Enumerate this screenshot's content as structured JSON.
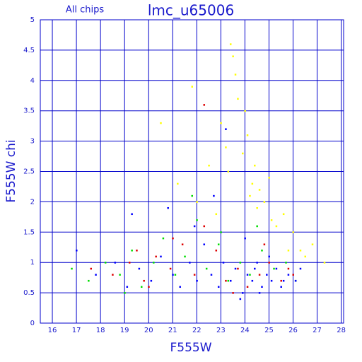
{
  "chart_data": {
    "type": "scatter",
    "title": "lmc_u65006",
    "subtitle": "All chips",
    "x_label": "F555W",
    "y_label": "F555W chi",
    "xlim": [
      15.5,
      28.1
    ],
    "ylim": [
      0,
      5
    ],
    "xticks": [
      16,
      17,
      18,
      19,
      20,
      21,
      22,
      23,
      24,
      25,
      26,
      27,
      28
    ],
    "yticks": [
      0,
      0.5,
      1,
      1.5,
      2,
      2.5,
      3,
      3.5,
      4,
      4.5,
      5
    ],
    "grid": true,
    "grid_color": "#0000cc",
    "text_color": "#1a1acc",
    "series": [
      {
        "color": "#ffff00",
        "x": [
          21.2,
          22.0,
          22.5,
          23.0,
          23.3,
          23.5,
          23.7,
          23.9,
          24.1,
          24.3,
          24.5,
          24.8,
          25.0,
          25.3,
          25.6,
          26.0,
          26.3,
          26.8,
          27.3,
          22.8,
          23.6,
          24.0,
          24.6,
          25.1,
          20.5,
          21.8,
          23.2,
          24.4,
          25.8,
          26.5,
          23.4,
          24.2
        ],
        "values": [
          2.3,
          2.0,
          2.6,
          3.3,
          2.5,
          4.4,
          3.7,
          2.8,
          3.1,
          2.3,
          1.9,
          2.0,
          2.4,
          1.6,
          1.8,
          1.5,
          1.2,
          1.3,
          1.0,
          1.8,
          4.1,
          3.5,
          2.2,
          1.7,
          3.3,
          3.9,
          2.9,
          2.6,
          1.2,
          1.1,
          4.6,
          2.1
        ]
      },
      {
        "color": "#dd0000",
        "x": [
          17.6,
          18.5,
          19.2,
          19.8,
          20.3,
          20.9,
          21.4,
          21.9,
          22.3,
          22.8,
          23.2,
          23.7,
          24.1,
          24.6,
          25.0,
          25.5,
          26.0,
          22.3,
          20.0,
          21.0,
          19.5,
          23.5,
          24.8,
          25.8
        ],
        "values": [
          0.9,
          0.8,
          1.0,
          0.7,
          1.1,
          0.9,
          1.3,
          0.8,
          3.6,
          1.2,
          0.7,
          0.9,
          0.6,
          0.8,
          1.0,
          0.7,
          0.8,
          1.6,
          0.6,
          1.4,
          1.2,
          0.5,
          1.3,
          0.9
        ]
      },
      {
        "color": "#00dd00",
        "x": [
          16.8,
          17.5,
          18.2,
          18.8,
          19.3,
          19.7,
          20.2,
          20.6,
          21.1,
          21.5,
          22.0,
          22.4,
          22.9,
          23.3,
          23.8,
          24.2,
          24.7,
          25.2,
          25.7,
          26.1,
          19.0,
          21.8,
          23.0,
          24.5
        ],
        "values": [
          0.9,
          0.7,
          1.0,
          0.8,
          1.2,
          0.6,
          1.0,
          1.4,
          0.8,
          1.1,
          1.7,
          0.9,
          1.3,
          0.7,
          1.0,
          0.8,
          1.2,
          0.9,
          1.0,
          0.7,
          0.5,
          2.1,
          1.5,
          1.6
        ]
      },
      {
        "color": "#0000ff",
        "x": [
          17.0,
          17.8,
          18.6,
          19.1,
          19.6,
          20.1,
          20.5,
          21.0,
          21.3,
          21.7,
          22.0,
          22.3,
          22.6,
          22.9,
          23.1,
          23.4,
          23.6,
          23.9,
          24.1,
          24.3,
          24.5,
          24.7,
          24.9,
          25.1,
          25.3,
          25.5,
          25.8,
          26.1,
          26.3,
          23.2,
          24.0,
          24.6,
          25.0,
          22.7,
          21.9,
          23.8,
          24.4,
          25.6,
          20.8,
          19.3
        ],
        "values": [
          1.2,
          0.8,
          1.0,
          0.6,
          0.9,
          0.7,
          1.1,
          0.8,
          0.6,
          1.0,
          0.7,
          1.3,
          0.8,
          0.6,
          1.0,
          0.7,
          0.9,
          0.5,
          0.8,
          0.7,
          1.0,
          0.6,
          0.8,
          0.7,
          0.9,
          0.6,
          0.8,
          0.7,
          0.9,
          3.2,
          1.4,
          0.5,
          1.1,
          2.1,
          1.6,
          0.4,
          0.9,
          0.7,
          1.9,
          1.8
        ]
      }
    ]
  }
}
